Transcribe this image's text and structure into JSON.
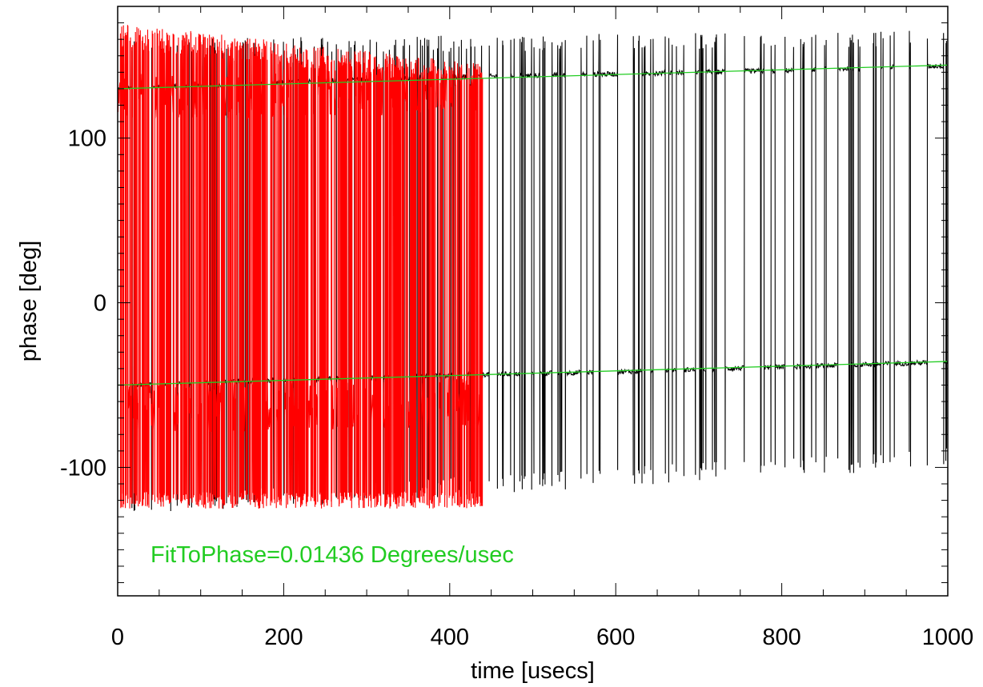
{
  "chart_data": {
    "type": "line",
    "xlabel": "time [usecs]",
    "ylabel": "phase [deg]",
    "xlim": [
      0,
      1000
    ],
    "ylim": [
      -178,
      180
    ],
    "x_ticks": [
      0,
      200,
      400,
      600,
      800,
      1000
    ],
    "x_tick_labels": [
      "0",
      "200",
      "400",
      "600",
      "800",
      "1000"
    ],
    "y_ticks": [
      -100,
      0,
      100
    ],
    "y_tick_labels": [
      "-100",
      "0",
      "100"
    ],
    "grid": false,
    "legend": "none",
    "annotation": {
      "text": "FitToPhase=0.01436 Degrees/usec",
      "color": "#22cc22"
    },
    "series": [
      {
        "color": "#000000",
        "style": "thin line, phase wrapping between two levels",
        "x_range": [
          0,
          1000
        ],
        "upper_level": [
          [
            0,
            130
          ],
          [
            200,
            134
          ],
          [
            400,
            137
          ],
          [
            600,
            139
          ],
          [
            800,
            141
          ],
          [
            1000,
            144
          ]
        ],
        "lower_level": [
          [
            0,
            -50
          ],
          [
            200,
            -47
          ],
          [
            400,
            -44
          ],
          [
            600,
            -42
          ],
          [
            800,
            -39
          ],
          [
            1000,
            -36
          ]
        ],
        "spike_max": [
          [
            0,
            160
          ],
          [
            1000,
            166
          ]
        ],
        "spike_min": [
          [
            0,
            -130
          ],
          [
            1000,
            -100
          ]
        ]
      },
      {
        "color": "#ff0000",
        "style": "noisy line, phase wrapping",
        "x_range": [
          0,
          440
        ],
        "upper_level": [
          [
            0,
            125
          ],
          [
            440,
            130
          ]
        ],
        "lower_level": [
          [
            0,
            -65
          ],
          [
            440,
            -60
          ]
        ],
        "spike_max": [
          [
            0,
            170
          ],
          [
            440,
            145
          ]
        ],
        "spike_min": [
          [
            0,
            -125
          ],
          [
            440,
            -125
          ]
        ]
      },
      {
        "color": "#22cc22",
        "style": "linear fit",
        "fits": [
          {
            "x": [
              0,
              1000
            ],
            "y": [
              130,
              144.36
            ]
          },
          {
            "x": [
              0,
              1000
            ],
            "y": [
              -50,
              -35.64
            ]
          }
        ]
      }
    ]
  }
}
